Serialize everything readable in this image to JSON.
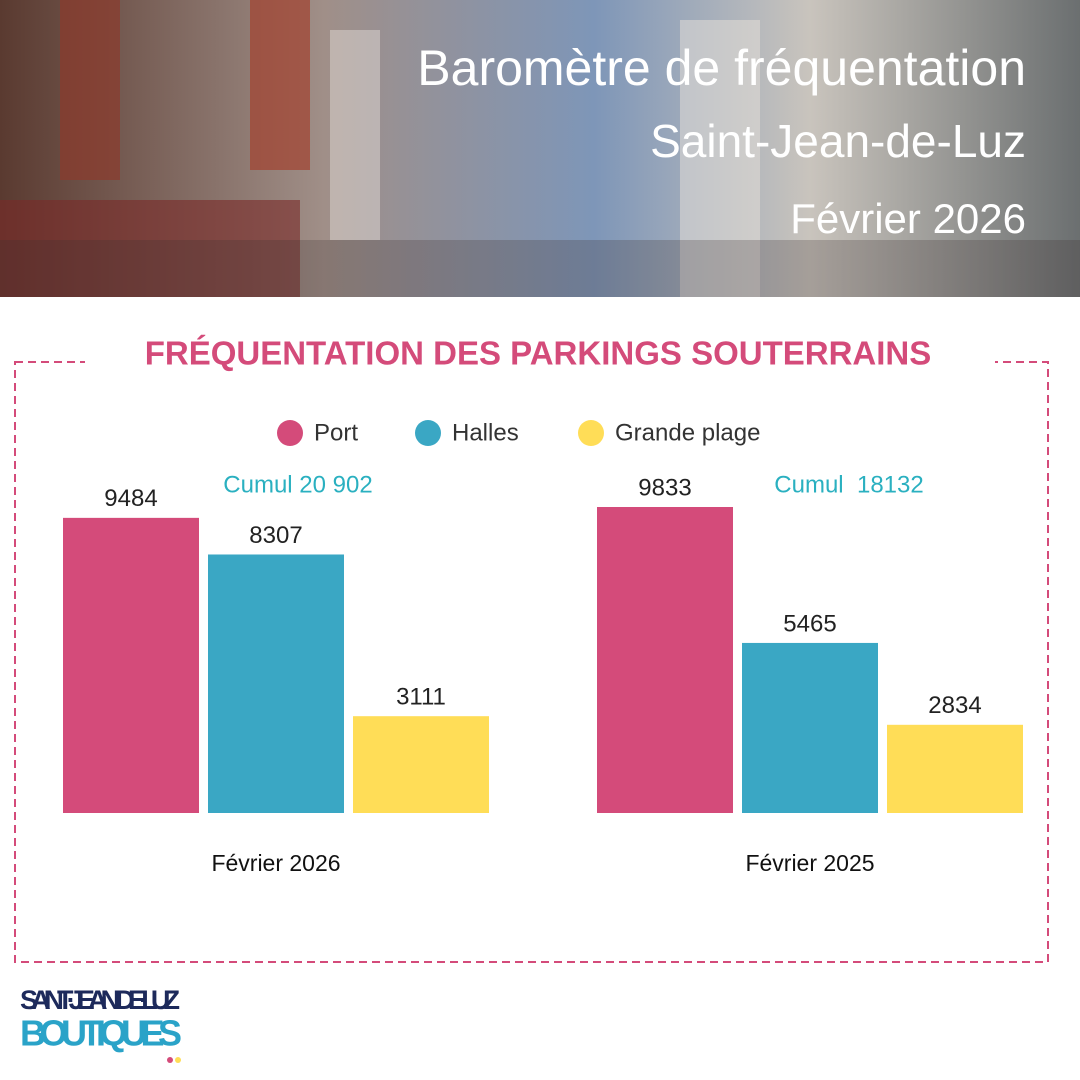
{
  "header": {
    "title": "Baromètre de fréquentation",
    "subtitle": "Saint-Jean-de-Luz",
    "period": "Février 2026"
  },
  "chart_data": {
    "type": "bar",
    "title": "FRÉQUENTATION DES PARKINGS SOUTERRAINS",
    "categories": [
      "Février 2026",
      "Février 2025"
    ],
    "series": [
      {
        "name": "Port",
        "color": "#d44b7a",
        "values": [
          9484,
          9833
        ]
      },
      {
        "name": "Halles",
        "color": "#3aa7c4",
        "values": [
          8307,
          5465
        ]
      },
      {
        "name": "Grande plage",
        "color": "#ffdd57",
        "values": [
          3111,
          2834
        ]
      }
    ],
    "annotations": [
      "Cumul 20 902",
      "Cumul  18132"
    ]
  },
  "logo": {
    "line1": "SAINT·JEAN·DE·LUZ",
    "line2": "BOUTIQUES"
  }
}
